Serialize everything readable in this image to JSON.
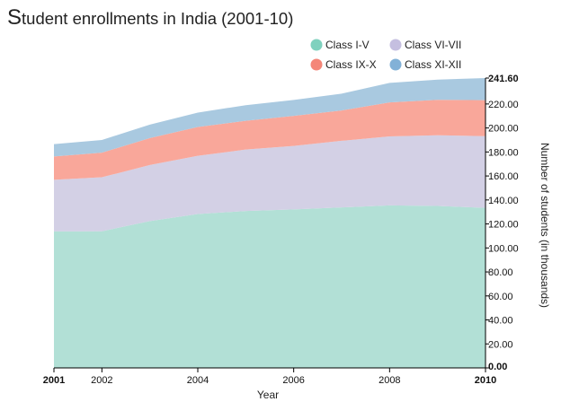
{
  "title": {
    "first_letter": "S",
    "rest": "tudent enrollments in India (2001-10)"
  },
  "chart_data": {
    "type": "area",
    "stacked": true,
    "x": [
      2001,
      2002,
      2003,
      2004,
      2005,
      2006,
      2007,
      2008,
      2009,
      2010
    ],
    "x_tick_labels": [
      {
        "value": 2001,
        "label": "2001",
        "bold": true
      },
      {
        "value": 2002,
        "label": "2002",
        "bold": false
      },
      {
        "value": 2004,
        "label": "2004",
        "bold": false
      },
      {
        "value": 2006,
        "label": "2006",
        "bold": false
      },
      {
        "value": 2008,
        "label": "2008",
        "bold": false
      },
      {
        "value": 2010,
        "label": "2010",
        "bold": true
      }
    ],
    "xlabel": "Year",
    "ylabel": "Number of students (in thousands)",
    "ylim": [
      0,
      241.6
    ],
    "y_ticks": [
      0,
      20,
      40,
      60,
      80,
      100,
      120,
      140,
      160,
      180,
      200,
      220,
      241.6
    ],
    "y_tick_labels": [
      "0.00",
      "20.00",
      "40.00",
      "60.00",
      "80.00",
      "100.00",
      "120.00",
      "140.00",
      "160.00",
      "180.00",
      "200.00",
      "220.00",
      "241.60"
    ],
    "y_axis_side": "right",
    "grid": false,
    "legend_position": "top-right",
    "series": [
      {
        "name": "Class I-V",
        "color": "#b2e0d6",
        "legend_color": "#7fd1be",
        "values": [
          113.8,
          113.9,
          122.4,
          128.3,
          130.8,
          132.1,
          133.8,
          135.5,
          135.0,
          133.4
        ]
      },
      {
        "name": "Class VI-VII",
        "color": "#d3d0e5",
        "legend_color": "#c5bfe0",
        "values": [
          43.0,
          45.0,
          46.7,
          48.5,
          51.2,
          52.9,
          55.5,
          57.5,
          58.9,
          59.8
        ]
      },
      {
        "name": "Class IX-X",
        "color": "#f9a79a",
        "legend_color": "#f48678",
        "values": [
          19.4,
          20.5,
          22.5,
          24.0,
          24.0,
          25.1,
          25.3,
          28.3,
          29.6,
          30.0
        ]
      },
      {
        "name": "Class XI-XII",
        "color": "#a9c9e0",
        "legend_color": "#82b1d7",
        "values": [
          10.3,
          10.6,
          11.2,
          12.0,
          13.0,
          13.3,
          14.0,
          16.3,
          16.8,
          18.4
        ]
      }
    ]
  }
}
